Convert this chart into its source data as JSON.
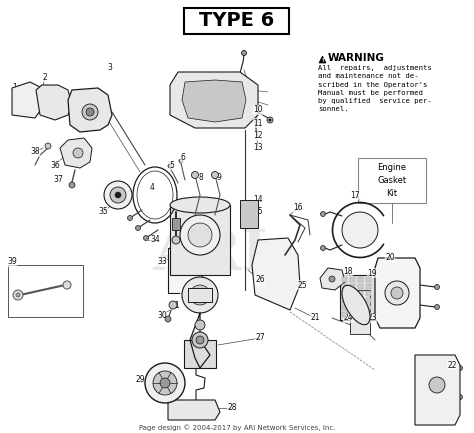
{
  "title": "TYPE 6",
  "warning_title": "WARNING",
  "warning_text": "All  repairs,  adjustments\nand maintenance not de-\nscribed in the Operator's\nManual must be performed\nby qualified  service per-\nsonnel.",
  "gasket_box_text": "Engine\nGasket\nKit",
  "footer_text": "Page design © 2004-2017 by ARI Network Services, Inc.",
  "bg_color": "#ffffff",
  "fig_width": 4.74,
  "fig_height": 4.33,
  "dpi": 100
}
